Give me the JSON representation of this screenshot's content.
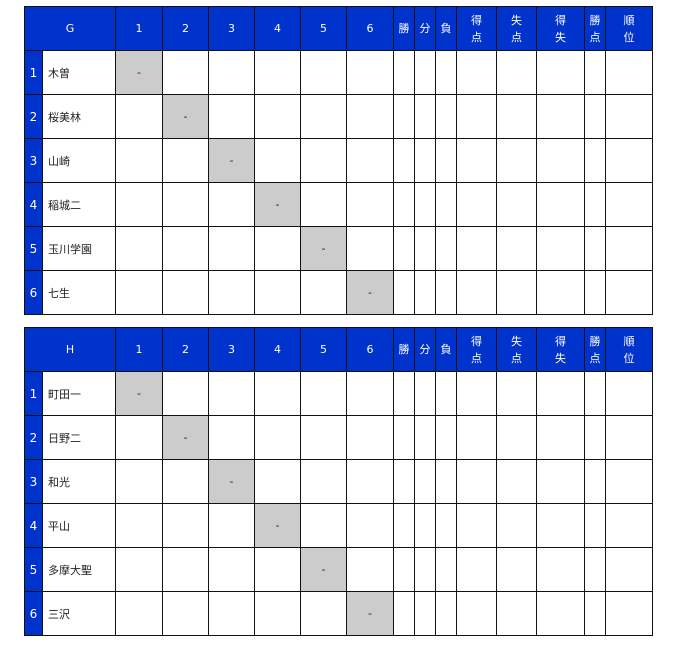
{
  "columns": [
    "1",
    "2",
    "3",
    "4",
    "5",
    "6"
  ],
  "stat_headers": [
    [
      "勝"
    ],
    [
      "分"
    ],
    [
      "負"
    ],
    [
      "得",
      "点"
    ],
    [
      "失",
      "点"
    ],
    [
      "得",
      "失"
    ],
    [
      "勝",
      "点"
    ],
    [
      "順",
      "位"
    ]
  ],
  "self_cell": "-",
  "colors": {
    "header": "#0033cc",
    "self_cell": "#cccccc"
  },
  "groups": [
    {
      "name": "G",
      "teams": [
        "木曽",
        "桜美林",
        "山崎",
        "稲城二",
        "玉川学園",
        "七生"
      ]
    },
    {
      "name": "H",
      "teams": [
        "町田一",
        "日野二",
        "和光",
        "平山",
        "多摩大聖",
        "三沢"
      ]
    }
  ]
}
